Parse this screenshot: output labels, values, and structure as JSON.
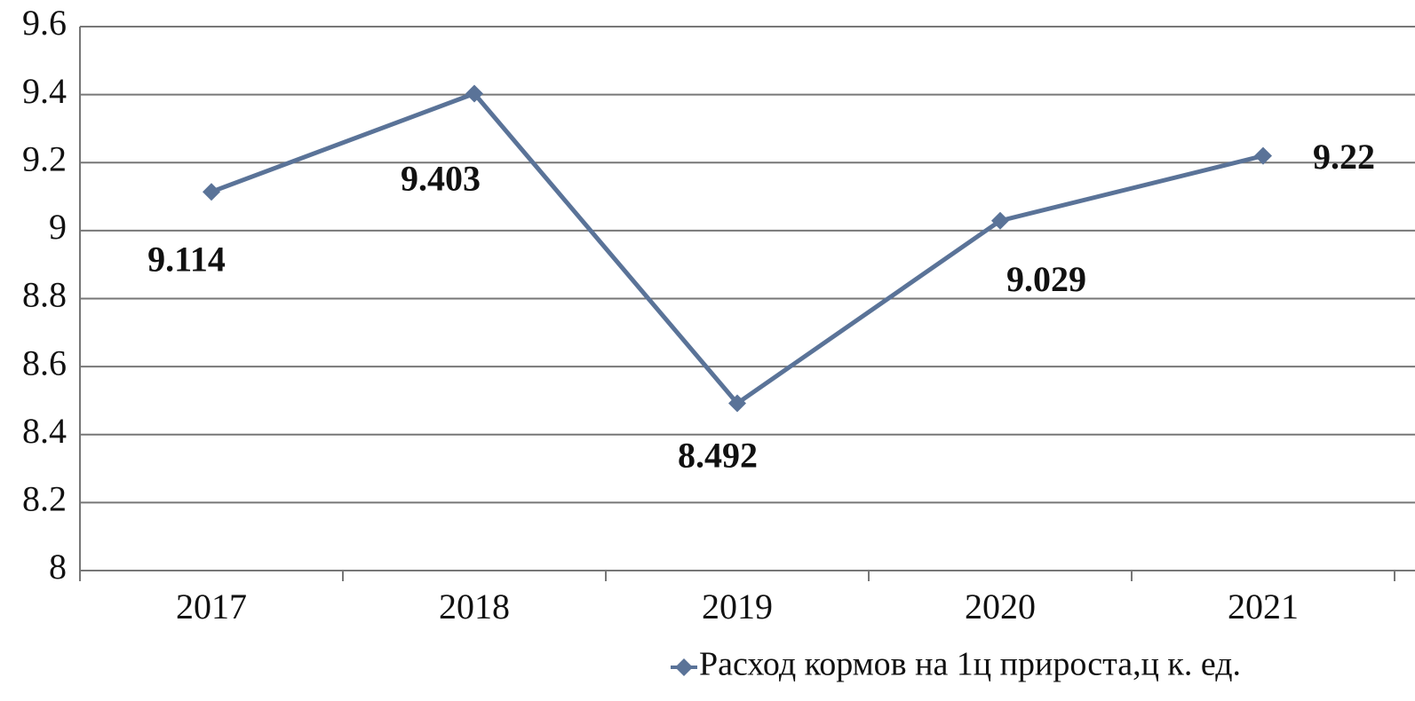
{
  "chart_data": {
    "type": "line",
    "categories": [
      "2017",
      "2018",
      "2019",
      "2020",
      "2021"
    ],
    "series": [
      {
        "name": "Расход кормов на 1ц прироста,ц к. ед.",
        "color": "#5a7398",
        "values": [
          9.114,
          9.403,
          8.492,
          9.029,
          9.22
        ]
      }
    ],
    "ylim": [
      8,
      9.6
    ],
    "yticks": [
      8,
      8.2,
      8.4,
      8.6,
      8.8,
      9,
      9.2,
      9.4,
      9.6
    ],
    "grid": true,
    "legend": "bottom-right"
  }
}
